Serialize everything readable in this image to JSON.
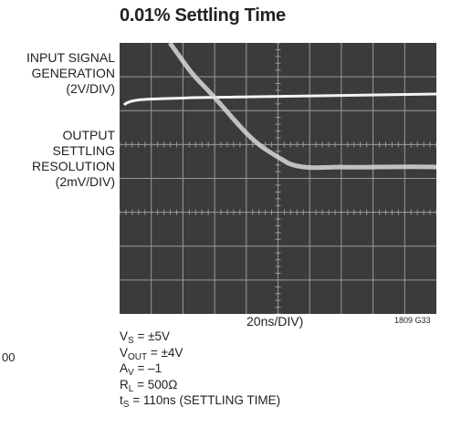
{
  "title": "0.01% Settling Time",
  "input_label": [
    "INPUT SIGNAL",
    "GENERATION",
    "(2V/DIV)"
  ],
  "output_label": [
    "OUTPUT",
    "SETTLING",
    "RESOLUTION",
    "(2mV/DIV)"
  ],
  "time_scale": "20ns/DIV)",
  "figure_id": "1809 G33",
  "edge_fragment": "00",
  "conditions": [
    {
      "main": "V",
      "sub": "S",
      "rest": " = ±5V"
    },
    {
      "main": "V",
      "sub": "OUT",
      "rest": " = ±4V"
    },
    {
      "main": "A",
      "sub": "V",
      "rest": " = –1"
    },
    {
      "main": "R",
      "sub": "L",
      "rest": " = 500Ω"
    },
    {
      "main": "t",
      "sub": "S",
      "rest": " = 110ns (SETTLING TIME)"
    }
  ]
}
